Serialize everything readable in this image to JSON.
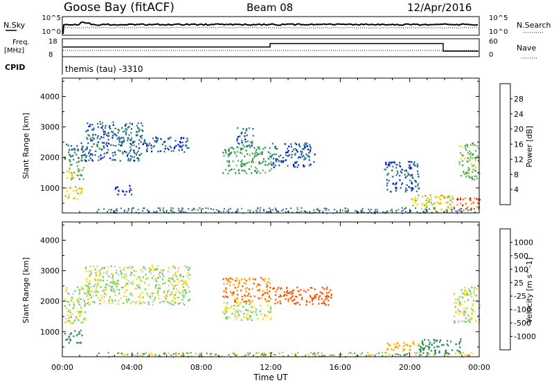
{
  "header": {
    "station": "Goose Bay (fitACF)",
    "beam": "Beam 08",
    "date": "12/Apr/2016"
  },
  "noise_panel": {
    "left_label": "N.Sky",
    "left_ticks": [
      "10^5",
      "10^0"
    ],
    "right_label": "N.Search",
    "right_ticks": [
      "10^5",
      "10^0"
    ]
  },
  "freq_panel": {
    "left_label_1": "Freq.",
    "left_label_2": "[MHz]",
    "left_ticks": [
      "18",
      "8"
    ],
    "right_label": "Nave",
    "right_ticks": [
      "60",
      "0"
    ]
  },
  "cpid": {
    "label": "CPID",
    "value": "themis (tau) -3310"
  },
  "colors": {
    "power": [
      "#0000ff",
      "#1f5fa8",
      "#2e8b57",
      "#5cb85c",
      "#ffd700",
      "#ff9900",
      "#ff5500",
      "#e00000"
    ],
    "velocity": [
      "#1f3fa8",
      "#2e6fc0",
      "#2e8b57",
      "#5cd05c",
      "#c8c8c0",
      "#ffd700",
      "#ffa500",
      "#ff5500",
      "#e00000"
    ]
  },
  "chart_data": [
    {
      "type": "heatmap",
      "title": "Power",
      "xlabel": "",
      "ylabel": "Slant Range [km]",
      "xlim": [
        0,
        24
      ],
      "ylim": [
        180,
        4600
      ],
      "x_ticks": [
        0,
        4,
        8,
        12,
        16,
        20,
        24
      ],
      "y_ticks": [
        1000,
        2000,
        3000,
        4000
      ],
      "colorbar": {
        "label": "Power [dB]",
        "ticks": [
          "4",
          "8",
          "12",
          "16",
          "20",
          "24",
          "28"
        ],
        "range": [
          0,
          32
        ]
      },
      "regions": [
        {
          "t": [
            0.1,
            1.3
          ],
          "r": [
            1800,
            2500
          ],
          "level": 8
        },
        {
          "t": [
            0.1,
            1.2
          ],
          "r": [
            1300,
            1800
          ],
          "level": 14
        },
        {
          "t": [
            0.1,
            1.1
          ],
          "r": [
            650,
            1100
          ],
          "level": 18
        },
        {
          "t": [
            1.3,
            4.6
          ],
          "r": [
            1900,
            3200
          ],
          "level": 7
        },
        {
          "t": [
            4.6,
            7.3
          ],
          "r": [
            2200,
            2700
          ],
          "level": 6
        },
        {
          "t": [
            3.0,
            4.0
          ],
          "r": [
            800,
            1100
          ],
          "level": 6
        },
        {
          "t": [
            9.2,
            12.0
          ],
          "r": [
            1500,
            2400
          ],
          "level": 12
        },
        {
          "t": [
            10.0,
            11.0
          ],
          "r": [
            2400,
            3000
          ],
          "level": 7
        },
        {
          "t": [
            12.0,
            14.5
          ],
          "r": [
            1700,
            2500
          ],
          "level": 6
        },
        {
          "t": [
            18.5,
            20.5
          ],
          "r": [
            900,
            1900
          ],
          "level": 6
        },
        {
          "t": [
            20.0,
            22.5
          ],
          "r": [
            300,
            800
          ],
          "level": 18
        },
        {
          "t": [
            22.5,
            24.0
          ],
          "r": [
            300,
            700
          ],
          "level": 26
        },
        {
          "t": [
            22.8,
            24.0
          ],
          "r": [
            1300,
            2500
          ],
          "level": 14
        }
      ]
    },
    {
      "type": "heatmap",
      "title": "Velocity",
      "xlabel": "Time UT",
      "ylabel": "Slant Range [km]",
      "xlim": [
        0,
        24
      ],
      "ylim": [
        180,
        4600
      ],
      "x_tick_labels": [
        "00:00",
        "04:00",
        "08:00",
        "12:00",
        "16:00",
        "20:00",
        "00:00"
      ],
      "y_ticks": [
        1000,
        2000,
        3000,
        4000
      ],
      "colorbar": {
        "label": "Velocity [m s^-1]",
        "ticks": [
          "1000",
          "500",
          "100",
          "25",
          "-25",
          "-100",
          "-500",
          "-1000"
        ]
      },
      "regions": [
        {
          "t": [
            0.1,
            1.3
          ],
          "r": [
            1300,
            2500
          ],
          "v": 0
        },
        {
          "t": [
            0.1,
            1.1
          ],
          "r": [
            650,
            1100
          ],
          "v": 150
        },
        {
          "t": [
            1.3,
            7.3
          ],
          "r": [
            1900,
            3200
          ],
          "v": 0
        },
        {
          "t": [
            9.2,
            12.0
          ],
          "r": [
            1400,
            2000
          ],
          "v": 0
        },
        {
          "t": [
            9.2,
            12.0
          ],
          "r": [
            2000,
            2800
          ],
          "v": -300
        },
        {
          "t": [
            12.0,
            15.5
          ],
          "r": [
            1900,
            2500
          ],
          "v": -600
        },
        {
          "t": [
            18.5,
            20.5
          ],
          "r": [
            400,
            700
          ],
          "v": -150
        },
        {
          "t": [
            20.5,
            23.0
          ],
          "r": [
            300,
            800
          ],
          "v": 100
        },
        {
          "t": [
            22.5,
            24.0
          ],
          "r": [
            1300,
            2500
          ],
          "v": 0
        }
      ]
    }
  ]
}
